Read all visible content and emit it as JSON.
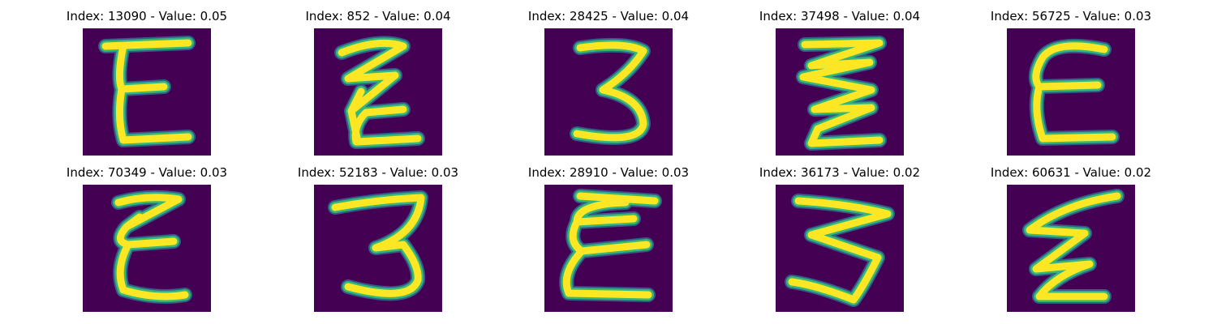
{
  "colors": {
    "background": "#440154",
    "stroke_core": "#fde725",
    "stroke_edge": "#35b779",
    "stroke_outer": "#31688e"
  },
  "panels": [
    {
      "title": "Index: 13090 - Value: 0.05",
      "glyph": "epsilon-narrow"
    },
    {
      "title": "Index: 852 - Value: 0.04",
      "glyph": "zigzag"
    },
    {
      "title": "Index: 28425 - Value: 0.04",
      "glyph": "three"
    },
    {
      "title": "Index: 37498 - Value: 0.04",
      "glyph": "zigzag-wide"
    },
    {
      "title": "Index: 56725 - Value: 0.03",
      "glyph": "epsilon-round"
    },
    {
      "title": "Index: 70349 - Value: 0.03",
      "glyph": "epsilon-tilt"
    },
    {
      "title": "Index: 52183 - Value: 0.03",
      "glyph": "three-thin"
    },
    {
      "title": "Index: 28910 - Value: 0.03",
      "glyph": "epsilon-loop"
    },
    {
      "title": "Index: 36173 - Value: 0.02",
      "glyph": "zigzag-big"
    },
    {
      "title": "Index: 60631 - Value: 0.02",
      "glyph": "epsilon-slant"
    }
  ]
}
